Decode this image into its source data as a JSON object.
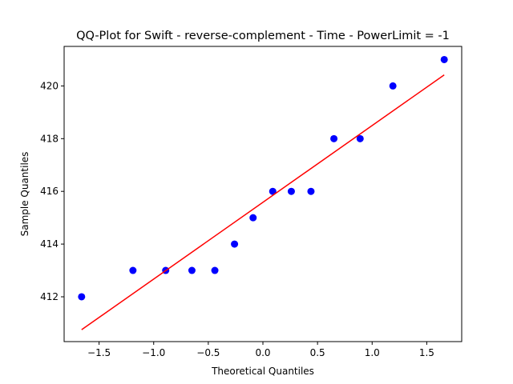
{
  "chart_data": {
    "type": "scatter",
    "title": "QQ-Plot for Swift - reverse-complement - Time - PowerLimit = -1",
    "xlabel": "Theoretical Quantiles",
    "ylabel": "Sample Quantiles",
    "xlim": [
      -1.82,
      1.82
    ],
    "ylim": [
      410.3,
      421.5
    ],
    "xticks": [
      -1.5,
      -1.0,
      -0.5,
      0.0,
      0.5,
      1.0,
      1.5
    ],
    "xtick_labels": [
      "−1.5",
      "−1.0",
      "−0.5",
      "0.0",
      "0.5",
      "1.0",
      "1.5"
    ],
    "yticks": [
      412,
      414,
      416,
      418,
      420
    ],
    "ytick_labels": [
      "412",
      "414",
      "416",
      "418",
      "420"
    ],
    "grid": false,
    "series": [
      {
        "kind": "points",
        "color": "#0000ff",
        "x": [
          -1.66,
          -1.19,
          -0.89,
          -0.65,
          -0.44,
          -0.26,
          -0.09,
          0.09,
          0.26,
          0.44,
          0.65,
          0.89,
          1.19,
          1.66
        ],
        "y": [
          412,
          413,
          413,
          413,
          413,
          414,
          415,
          416,
          416,
          416,
          418,
          418,
          420,
          421
        ]
      },
      {
        "kind": "line",
        "color": "#ff0000",
        "x": [
          -1.66,
          1.66
        ],
        "y": [
          410.75,
          420.42
        ]
      }
    ]
  }
}
